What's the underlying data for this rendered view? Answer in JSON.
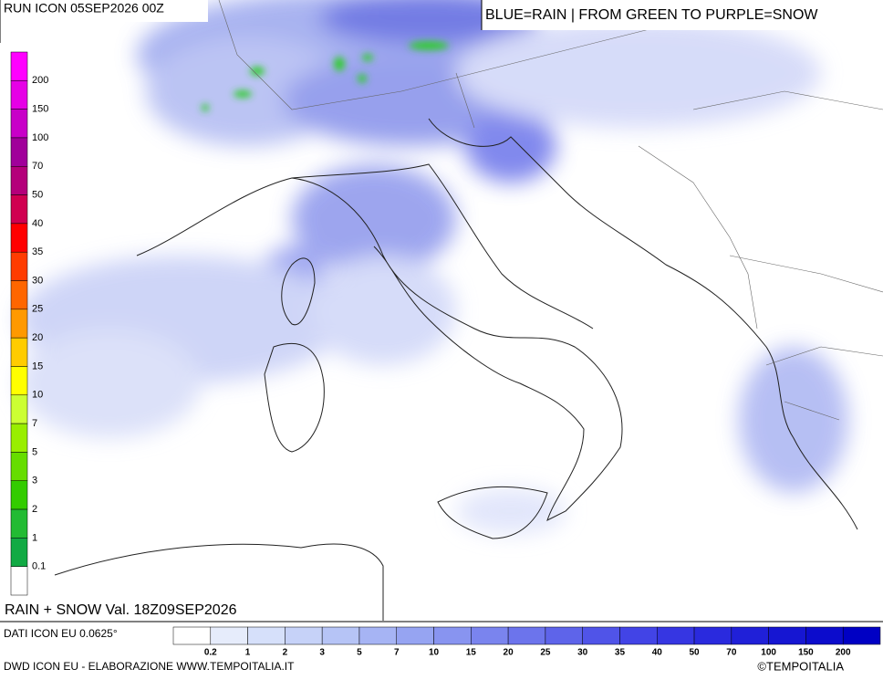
{
  "header": {
    "run": "RUN ICON 05SEP2026 00Z",
    "key": "BLUE=RAIN | FROM GREEN TO PURPLE=SNOW"
  },
  "snow_scale": {
    "labels": [
      "200",
      "150",
      "100",
      "70",
      "50",
      "40",
      "35",
      "30",
      "25",
      "20",
      "15",
      "10",
      "7",
      "5",
      "3",
      "2",
      "1",
      "0.1"
    ],
    "colors": [
      "#ff00ff",
      "#e600e6",
      "#c800c8",
      "#a0009a",
      "#b4007a",
      "#d00050",
      "#ff0000",
      "#ff3c00",
      "#ff6600",
      "#ff9900",
      "#ffcc00",
      "#ffff00",
      "#ccff33",
      "#99ee00",
      "#66dd00",
      "#33cc00",
      "#22bb33",
      "#11aa44",
      "#ffffff"
    ]
  },
  "rain_scale": {
    "labels": [
      "0.2",
      "1",
      "2",
      "3",
      "5",
      "7",
      "10",
      "15",
      "20",
      "25",
      "30",
      "35",
      "40",
      "50",
      "70",
      "100",
      "150",
      "200"
    ],
    "colors": [
      "#ffffff",
      "#e6ecfb",
      "#d6e0fa",
      "#c6d2f8",
      "#b6c4f6",
      "#a6b4f4",
      "#96a4f2",
      "#8894f0",
      "#7a84ee",
      "#6c74ec",
      "#5e64ea",
      "#5054e8",
      "#4244e6",
      "#3636e2",
      "#2a2ade",
      "#2020d8",
      "#1616d2",
      "#0c0ccc",
      "#0000c4"
    ]
  },
  "footer": {
    "product": "RAIN + SNOW Val. 18Z09SEP2026",
    "data": "DATI ICON EU 0.0625°",
    "credits": "DWD ICON EU - ELABORAZIONE WWW.TEMPOITALIA.IT",
    "brand": "©TEMPOITALIA"
  }
}
